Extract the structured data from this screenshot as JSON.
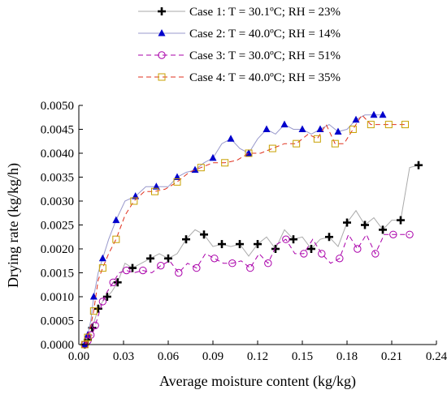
{
  "chart_data": {
    "type": "line",
    "xlabel": "Average moisture content (kg/kg)",
    "ylabel": "Drying rate (kg/kg/h)",
    "xlim": [
      0,
      0.24
    ],
    "ylim": [
      0,
      0.005
    ],
    "xticks": [
      0,
      0.03,
      0.06,
      0.09,
      0.12,
      0.15,
      0.18,
      0.21,
      0.24
    ],
    "xtick_labels": [
      "0.00",
      "0.03",
      "0.06",
      "0.09",
      "0.12",
      "0.15",
      "0.18",
      "0.21",
      "0.24"
    ],
    "yticks": [
      0,
      0.0005,
      0.001,
      0.0015,
      0.002,
      0.0025,
      0.003,
      0.0035,
      0.004,
      0.0045,
      0.005
    ],
    "ytick_labels": [
      "0.0000",
      "0.0005",
      "0.0010",
      "0.0015",
      "0.0020",
      "0.0025",
      "0.0030",
      "0.0035",
      "0.0040",
      "0.0045",
      "0.0050"
    ],
    "grid": false,
    "legend_position": "top",
    "series": [
      {
        "name": "Case 1: T = 30.1ºC; RH = 23%",
        "color": "#000000",
        "marker": "plus",
        "line_style": "solid",
        "line_color": "#aaaaaa",
        "x": [
          0.004,
          0.005,
          0.006,
          0.007,
          0.009,
          0.011,
          0.013,
          0.016,
          0.019,
          0.022,
          0.026,
          0.031,
          0.036,
          0.042,
          0.048,
          0.054,
          0.06,
          0.066,
          0.072,
          0.078,
          0.084,
          0.09,
          0.096,
          0.102,
          0.108,
          0.114,
          0.12,
          0.126,
          0.132,
          0.138,
          0.144,
          0.15,
          0.156,
          0.162,
          0.168,
          0.174,
          0.18,
          0.186,
          0.192,
          0.198,
          0.204,
          0.21,
          0.216,
          0.222,
          0.228
        ],
        "y": [
          0.0,
          2e-05,
          0.0001,
          0.0002,
          0.00035,
          0.00055,
          0.00075,
          0.0009,
          0.001,
          0.0011,
          0.0013,
          0.0017,
          0.0016,
          0.0017,
          0.0018,
          0.0019,
          0.0018,
          0.0019,
          0.0022,
          0.0024,
          0.0023,
          0.00205,
          0.0021,
          0.00205,
          0.0021,
          0.00185,
          0.0021,
          0.00225,
          0.002,
          0.0024,
          0.0022,
          0.00225,
          0.002,
          0.0022,
          0.00225,
          0.00205,
          0.00255,
          0.0028,
          0.0025,
          0.00265,
          0.0024,
          0.0026,
          0.0026,
          0.0037,
          0.00375
        ]
      },
      {
        "name": "Case 2: T = 40.0ºC; RH = 14%",
        "color": "#0000cc",
        "marker": "triangle",
        "line_style": "solid",
        "line_color": "#9999cc",
        "x": [
          0.004,
          0.005,
          0.006,
          0.008,
          0.01,
          0.013,
          0.016,
          0.02,
          0.025,
          0.031,
          0.038,
          0.045,
          0.052,
          0.06,
          0.066,
          0.072,
          0.078,
          0.084,
          0.09,
          0.096,
          0.102,
          0.108,
          0.114,
          0.12,
          0.126,
          0.132,
          0.138,
          0.144,
          0.15,
          0.156,
          0.162,
          0.168,
          0.174,
          0.18,
          0.186,
          0.192,
          0.198,
          0.204
        ],
        "y": [
          0.0,
          5e-05,
          0.0002,
          0.0005,
          0.001,
          0.0015,
          0.0018,
          0.0022,
          0.0026,
          0.003,
          0.0031,
          0.0033,
          0.0033,
          0.0033,
          0.0035,
          0.0036,
          0.00365,
          0.0038,
          0.0039,
          0.0042,
          0.0043,
          0.0041,
          0.004,
          0.0043,
          0.0045,
          0.0044,
          0.0046,
          0.0045,
          0.0045,
          0.0044,
          0.0045,
          0.0046,
          0.00445,
          0.0045,
          0.0047,
          0.0048,
          0.0048,
          0.0048
        ]
      },
      {
        "name": "Case 3: T = 30.0ºC; RH = 51%",
        "color": "#aa00aa",
        "marker": "circle",
        "line_style": "dashed",
        "line_color": "#aa00aa",
        "x": [
          0.004,
          0.005,
          0.006,
          0.007,
          0.008,
          0.009,
          0.011,
          0.013,
          0.016,
          0.019,
          0.023,
          0.027,
          0.032,
          0.037,
          0.043,
          0.049,
          0.055,
          0.061,
          0.067,
          0.073,
          0.079,
          0.085,
          0.091,
          0.097,
          0.103,
          0.109,
          0.115,
          0.121,
          0.127,
          0.133,
          0.139,
          0.145,
          0.151,
          0.157,
          0.163,
          0.169,
          0.175,
          0.181,
          0.187,
          0.193,
          0.199,
          0.205,
          0.211,
          0.217,
          0.222
        ],
        "y": [
          0.0,
          3e-05,
          8e-05,
          0.00015,
          0.0002,
          0.0002,
          0.0004,
          0.0006,
          0.0009,
          0.0011,
          0.0013,
          0.0015,
          0.00155,
          0.0015,
          0.00155,
          0.0015,
          0.00165,
          0.00175,
          0.0015,
          0.0017,
          0.0016,
          0.0019,
          0.0018,
          0.0017,
          0.0017,
          0.00175,
          0.0016,
          0.0019,
          0.0017,
          0.0021,
          0.0022,
          0.0019,
          0.0019,
          0.0022,
          0.0019,
          0.0017,
          0.0018,
          0.0023,
          0.002,
          0.0023,
          0.0019,
          0.0023,
          0.0023,
          0.0023,
          0.0023
        ]
      },
      {
        "name": "Case 4: T = 40.0ºC; RH = 35%",
        "color": "#e0301e",
        "marker": "square",
        "marker_color": "#c8a000",
        "line_style": "dashed",
        "line_color": "#e0301e",
        "x": [
          0.004,
          0.005,
          0.006,
          0.008,
          0.01,
          0.013,
          0.016,
          0.02,
          0.025,
          0.031,
          0.037,
          0.044,
          0.051,
          0.058,
          0.066,
          0.074,
          0.082,
          0.09,
          0.098,
          0.106,
          0.114,
          0.122,
          0.13,
          0.138,
          0.146,
          0.154,
          0.16,
          0.166,
          0.172,
          0.178,
          0.184,
          0.19,
          0.196,
          0.202,
          0.208,
          0.214,
          0.219
        ],
        "y": [
          0.0,
          5e-05,
          0.00015,
          0.0004,
          0.0007,
          0.00135,
          0.0016,
          0.0019,
          0.0022,
          0.0027,
          0.003,
          0.0032,
          0.0032,
          0.00325,
          0.0034,
          0.0036,
          0.0037,
          0.0038,
          0.0038,
          0.00385,
          0.004,
          0.004,
          0.0041,
          0.0042,
          0.0042,
          0.0044,
          0.0043,
          0.0046,
          0.0042,
          0.0042,
          0.0045,
          0.0048,
          0.0046,
          0.0046,
          0.0046,
          0.0046,
          0.0046
        ]
      }
    ]
  }
}
